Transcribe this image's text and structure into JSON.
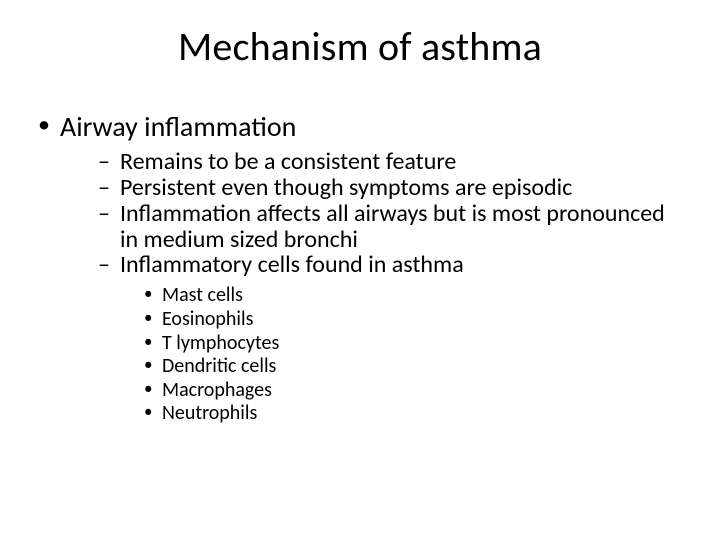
{
  "title": "Mechanism of asthma",
  "level1": {
    "item0": "Airway inflammation"
  },
  "level2": {
    "item0": "Remains to be a consistent feature",
    "item1": "Persistent even though symptoms are episodic",
    "item2": "Inflammation affects all airways but is most pronounced in medium sized bronchi",
    "item3": "Inflammatory cells found in asthma"
  },
  "level3": {
    "item0": "Mast cells",
    "item1": "Eosinophils",
    "item2": "T lymphocytes",
    "item3": "Dendritic cells",
    "item4": "Macrophages",
    "item5": "Neutrophils"
  },
  "style": {
    "background_color": "#ffffff",
    "text_color": "#000000",
    "font_family": "Calibri",
    "title_fontsize": 40,
    "lvl1_fontsize": 28,
    "lvl2_fontsize": 24,
    "lvl3_fontsize": 20,
    "bullet_lvl1": "•",
    "bullet_lvl2": "–",
    "bullet_lvl3": "•"
  }
}
